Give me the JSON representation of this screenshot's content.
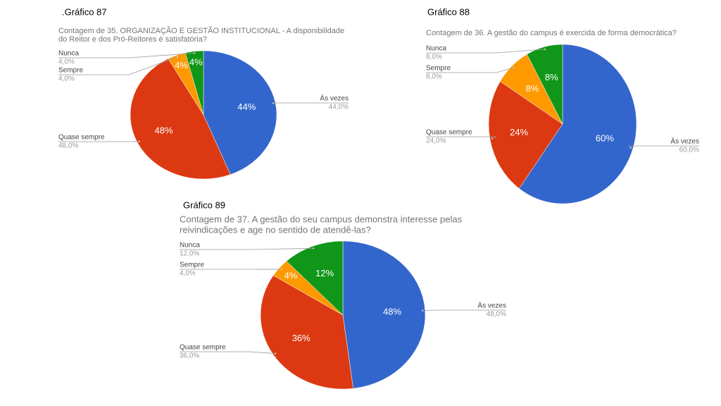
{
  "chart_data": [
    {
      "type": "pie",
      "caption": ".Gráfico 87",
      "title": [
        "Contagem de 35. ORGANIZAÇÃO E GESTÃO INSTITUCIONAL - A disponibilidade",
        "do Reitor e dos Pró-Reitores é satisfatória?"
      ],
      "categories": [
        "Às vezes",
        "Quase sempre",
        "Sempre",
        "Nunca"
      ],
      "values": [
        44,
        48,
        4,
        4
      ],
      "value_labels": [
        "44%",
        "48%",
        "4%",
        "4%"
      ],
      "outer_value_labels": [
        "44,0%",
        "48,0%",
        "4,0%",
        "4,0%"
      ],
      "colors": [
        "#3366cc",
        "#dc3912",
        "#ff9900",
        "#109618"
      ]
    },
    {
      "type": "pie",
      "caption": "Gráfico 88",
      "title": [
        "Contagem de 36. A gestão do campus é exercida de forma democrática?"
      ],
      "categories": [
        "Às vezes",
        "Quase sempre",
        "Sempre",
        "Nunca"
      ],
      "values": [
        60,
        24,
        8,
        8
      ],
      "value_labels": [
        "60%",
        "24%",
        "8%",
        "8%"
      ],
      "outer_value_labels": [
        "60,0%",
        "24,0%",
        "8,0%",
        "8,0%"
      ],
      "colors": [
        "#3366cc",
        "#dc3912",
        "#ff9900",
        "#109618"
      ]
    },
    {
      "type": "pie",
      "caption": "Gráfico 89",
      "title": [
        "Contagem de 37. A gestão do seu campus demonstra interesse pelas",
        "reivindicações e age no sentido de atendê-las?"
      ],
      "categories": [
        "Às vezes",
        "Quase sempre",
        "Sempre",
        "Nunca"
      ],
      "values": [
        48,
        36,
        4,
        12
      ],
      "value_labels": [
        "48%",
        "36%",
        "4%",
        "12%"
      ],
      "outer_value_labels": [
        "48,0%",
        "36,0%",
        "4,0%",
        "12,0%"
      ],
      "colors": [
        "#3366cc",
        "#dc3912",
        "#ff9900",
        "#109618"
      ]
    }
  ]
}
